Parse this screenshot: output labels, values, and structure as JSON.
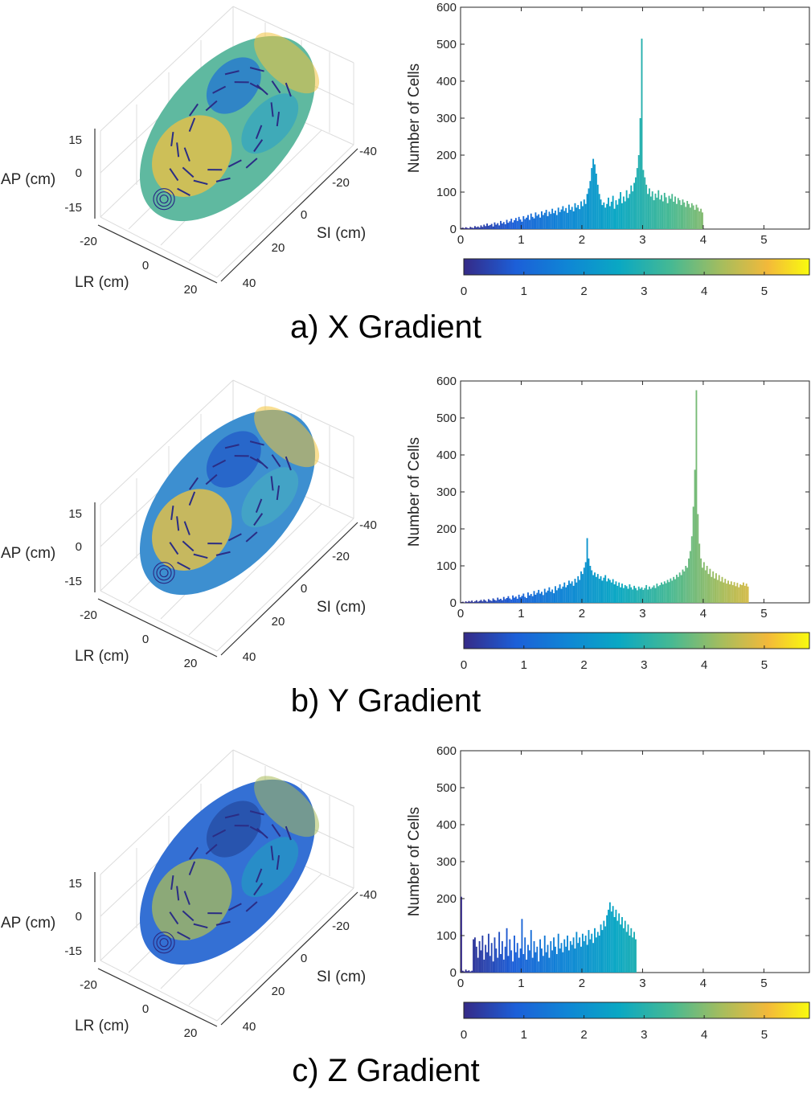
{
  "chart_data": [
    {
      "panel": "a",
      "caption": "a) X Gradient",
      "type": "bar",
      "ylabel": "Number of Cells",
      "ylim": [
        0,
        600
      ],
      "yticks": [
        "0",
        "100",
        "200",
        "300",
        "400",
        "500",
        "600"
      ],
      "xlim": [
        0,
        5.75
      ],
      "xticks": [
        "0",
        "1",
        "2",
        "3",
        "4",
        "5"
      ],
      "colorbar_ticks": [
        "0",
        "1",
        "2",
        "3",
        "4",
        "5"
      ],
      "colorbar_range": [
        0,
        5.75
      ],
      "bin_width": 0.025,
      "x_start": 0.0,
      "values": [
        3,
        4,
        2,
        5,
        3,
        2,
        6,
        4,
        3,
        8,
        5,
        7,
        4,
        10,
        6,
        12,
        8,
        15,
        9,
        11,
        14,
        7,
        18,
        12,
        16,
        10,
        22,
        15,
        19,
        13,
        25,
        17,
        21,
        28,
        18,
        24,
        30,
        22,
        33,
        26,
        20,
        35,
        27,
        31,
        38,
        25,
        42,
        33,
        29,
        45,
        36,
        40,
        31,
        48,
        38,
        44,
        52,
        35,
        47,
        41,
        55,
        43,
        50,
        38,
        58,
        46,
        53,
        62,
        49,
        57,
        44,
        66,
        52,
        60,
        48,
        70,
        58,
        65,
        54,
        75,
        62,
        80,
        68,
        95,
        110,
        130,
        165,
        190,
        175,
        150,
        120,
        95,
        80,
        65,
        72,
        58,
        68,
        85,
        62,
        74,
        90,
        55,
        78,
        66,
        82,
        100,
        70,
        88,
        75,
        105,
        84,
        95,
        118,
        102,
        125,
        140,
        165,
        200,
        300,
        515,
        160,
        140,
        120,
        95,
        110,
        88,
        102,
        78,
        96,
        85,
        105,
        80,
        92,
        75,
        98,
        86,
        70,
        90,
        82,
        95,
        74,
        88,
        68,
        84,
        78,
        65,
        80,
        72,
        60,
        76,
        68,
        58,
        70,
        64,
        52,
        66,
        58,
        48,
        55,
        45
      ]
    },
    {
      "panel": "b",
      "caption": "b) Y Gradient",
      "type": "bar",
      "ylabel": "Number of Cells",
      "ylim": [
        0,
        600
      ],
      "yticks": [
        "0",
        "100",
        "200",
        "300",
        "400",
        "500",
        "600"
      ],
      "xlim": [
        0,
        5.75
      ],
      "xticks": [
        "0",
        "1",
        "2",
        "3",
        "4",
        "5"
      ],
      "colorbar_ticks": [
        "0",
        "1",
        "2",
        "3",
        "4",
        "5"
      ],
      "colorbar_range": [
        0,
        5.75
      ],
      "bin_width": 0.025,
      "x_start": 0.0,
      "values": [
        2,
        3,
        1,
        4,
        2,
        5,
        3,
        6,
        2,
        4,
        7,
        3,
        5,
        8,
        4,
        9,
        6,
        3,
        10,
        7,
        5,
        12,
        8,
        6,
        14,
        9,
        11,
        7,
        16,
        10,
        13,
        18,
        12,
        9,
        20,
        14,
        17,
        11,
        22,
        15,
        19,
        25,
        16,
        13,
        28,
        20,
        24,
        18,
        32,
        22,
        27,
        35,
        25,
        30,
        21,
        38,
        28,
        33,
        42,
        30,
        36,
        26,
        45,
        34,
        40,
        50,
        38,
        44,
        55,
        42,
        48,
        60,
        52,
        58,
        46,
        65,
        55,
        72,
        62,
        85,
        78,
        95,
        110,
        175,
        120,
        100,
        88,
        75,
        82,
        70,
        78,
        65,
        72,
        60,
        68,
        75,
        58,
        66,
        62,
        55,
        64,
        50,
        58,
        46,
        55,
        42,
        52,
        40,
        48,
        45,
        38,
        50,
        42,
        36,
        46,
        40,
        34,
        44,
        38,
        42,
        35,
        40,
        48,
        36,
        44,
        38,
        42,
        47,
        40,
        52,
        45,
        48,
        55,
        50,
        58,
        53,
        62,
        56,
        66,
        60,
        70,
        64,
        76,
        70,
        82,
        75,
        90,
        85,
        100,
        95,
        120,
        140,
        180,
        260,
        360,
        575,
        240,
        160,
        120,
        95,
        110,
        88,
        100,
        78,
        92,
        70,
        85,
        66,
        80,
        62,
        75,
        58,
        70,
        55,
        65,
        52,
        60,
        50,
        58,
        48,
        56,
        45,
        54,
        42,
        50,
        48,
        55,
        46,
        52,
        44
      ]
    },
    {
      "panel": "c",
      "caption": "c) Z Gradient",
      "type": "bar",
      "ylabel": "Number of Cells",
      "ylim": [
        0,
        600
      ],
      "yticks": [
        "0",
        "100",
        "200",
        "300",
        "400",
        "500",
        "600"
      ],
      "xlim": [
        0,
        5.75
      ],
      "xticks": [
        "0",
        "1",
        "2",
        "3",
        "4",
        "5"
      ],
      "colorbar_ticks": [
        "0",
        "1",
        "2",
        "3",
        "4",
        "5"
      ],
      "colorbar_range": [
        0,
        5.75
      ],
      "bin_width": 0.025,
      "x_start": 0.0,
      "values": [
        205,
        5,
        3,
        8,
        4,
        6,
        3,
        5,
        90,
        95,
        70,
        40,
        85,
        60,
        100,
        35,
        75,
        55,
        105,
        45,
        80,
        30,
        95,
        65,
        40,
        110,
        50,
        85,
        35,
        70,
        120,
        45,
        90,
        60,
        30,
        100,
        55,
        80,
        40,
        65,
        145,
        50,
        95,
        35,
        75,
        60,
        115,
        40,
        85,
        55,
        70,
        30,
        90,
        65,
        45,
        100,
        55,
        75,
        40,
        85,
        60,
        95,
        70,
        50,
        105,
        65,
        80,
        55,
        90,
        70,
        100,
        60,
        85,
        75,
        95,
        65,
        110,
        80,
        95,
        70,
        105,
        85,
        100,
        75,
        115,
        90,
        105,
        80,
        120,
        95,
        110,
        100,
        130,
        115,
        140,
        125,
        155,
        170,
        190,
        165,
        180,
        150,
        170,
        140,
        160,
        130,
        150,
        120,
        140,
        110,
        130,
        100,
        120,
        95,
        110,
        90
      ]
    }
  ],
  "left_panels": [
    {
      "panel": "a",
      "ap_label": "AP (cm)",
      "lr_label": "LR (cm)",
      "si_label": "SI (cm)",
      "ap_ticks": [
        "15",
        "0",
        "-15"
      ],
      "lr_ticks": [
        "-20",
        "0",
        "20"
      ],
      "si_ticks": [
        "-40",
        "-20",
        "0",
        "20",
        "40"
      ]
    },
    {
      "panel": "b",
      "ap_label": "AP (cm)",
      "lr_label": "LR (cm)",
      "si_label": "SI (cm)",
      "ap_ticks": [
        "15",
        "0",
        "-15"
      ],
      "lr_ticks": [
        "-20",
        "0",
        "20"
      ],
      "si_ticks": [
        "-40",
        "-20",
        "0",
        "20",
        "40"
      ]
    },
    {
      "panel": "c",
      "ap_label": "AP (cm)",
      "lr_label": "LR (cm)",
      "si_label": "SI (cm)",
      "ap_ticks": [
        "15",
        "0",
        "-15"
      ],
      "lr_ticks": [
        "-20",
        "0",
        "20"
      ],
      "si_ticks": [
        "-40",
        "-20",
        "0",
        "20",
        "40"
      ]
    }
  ]
}
